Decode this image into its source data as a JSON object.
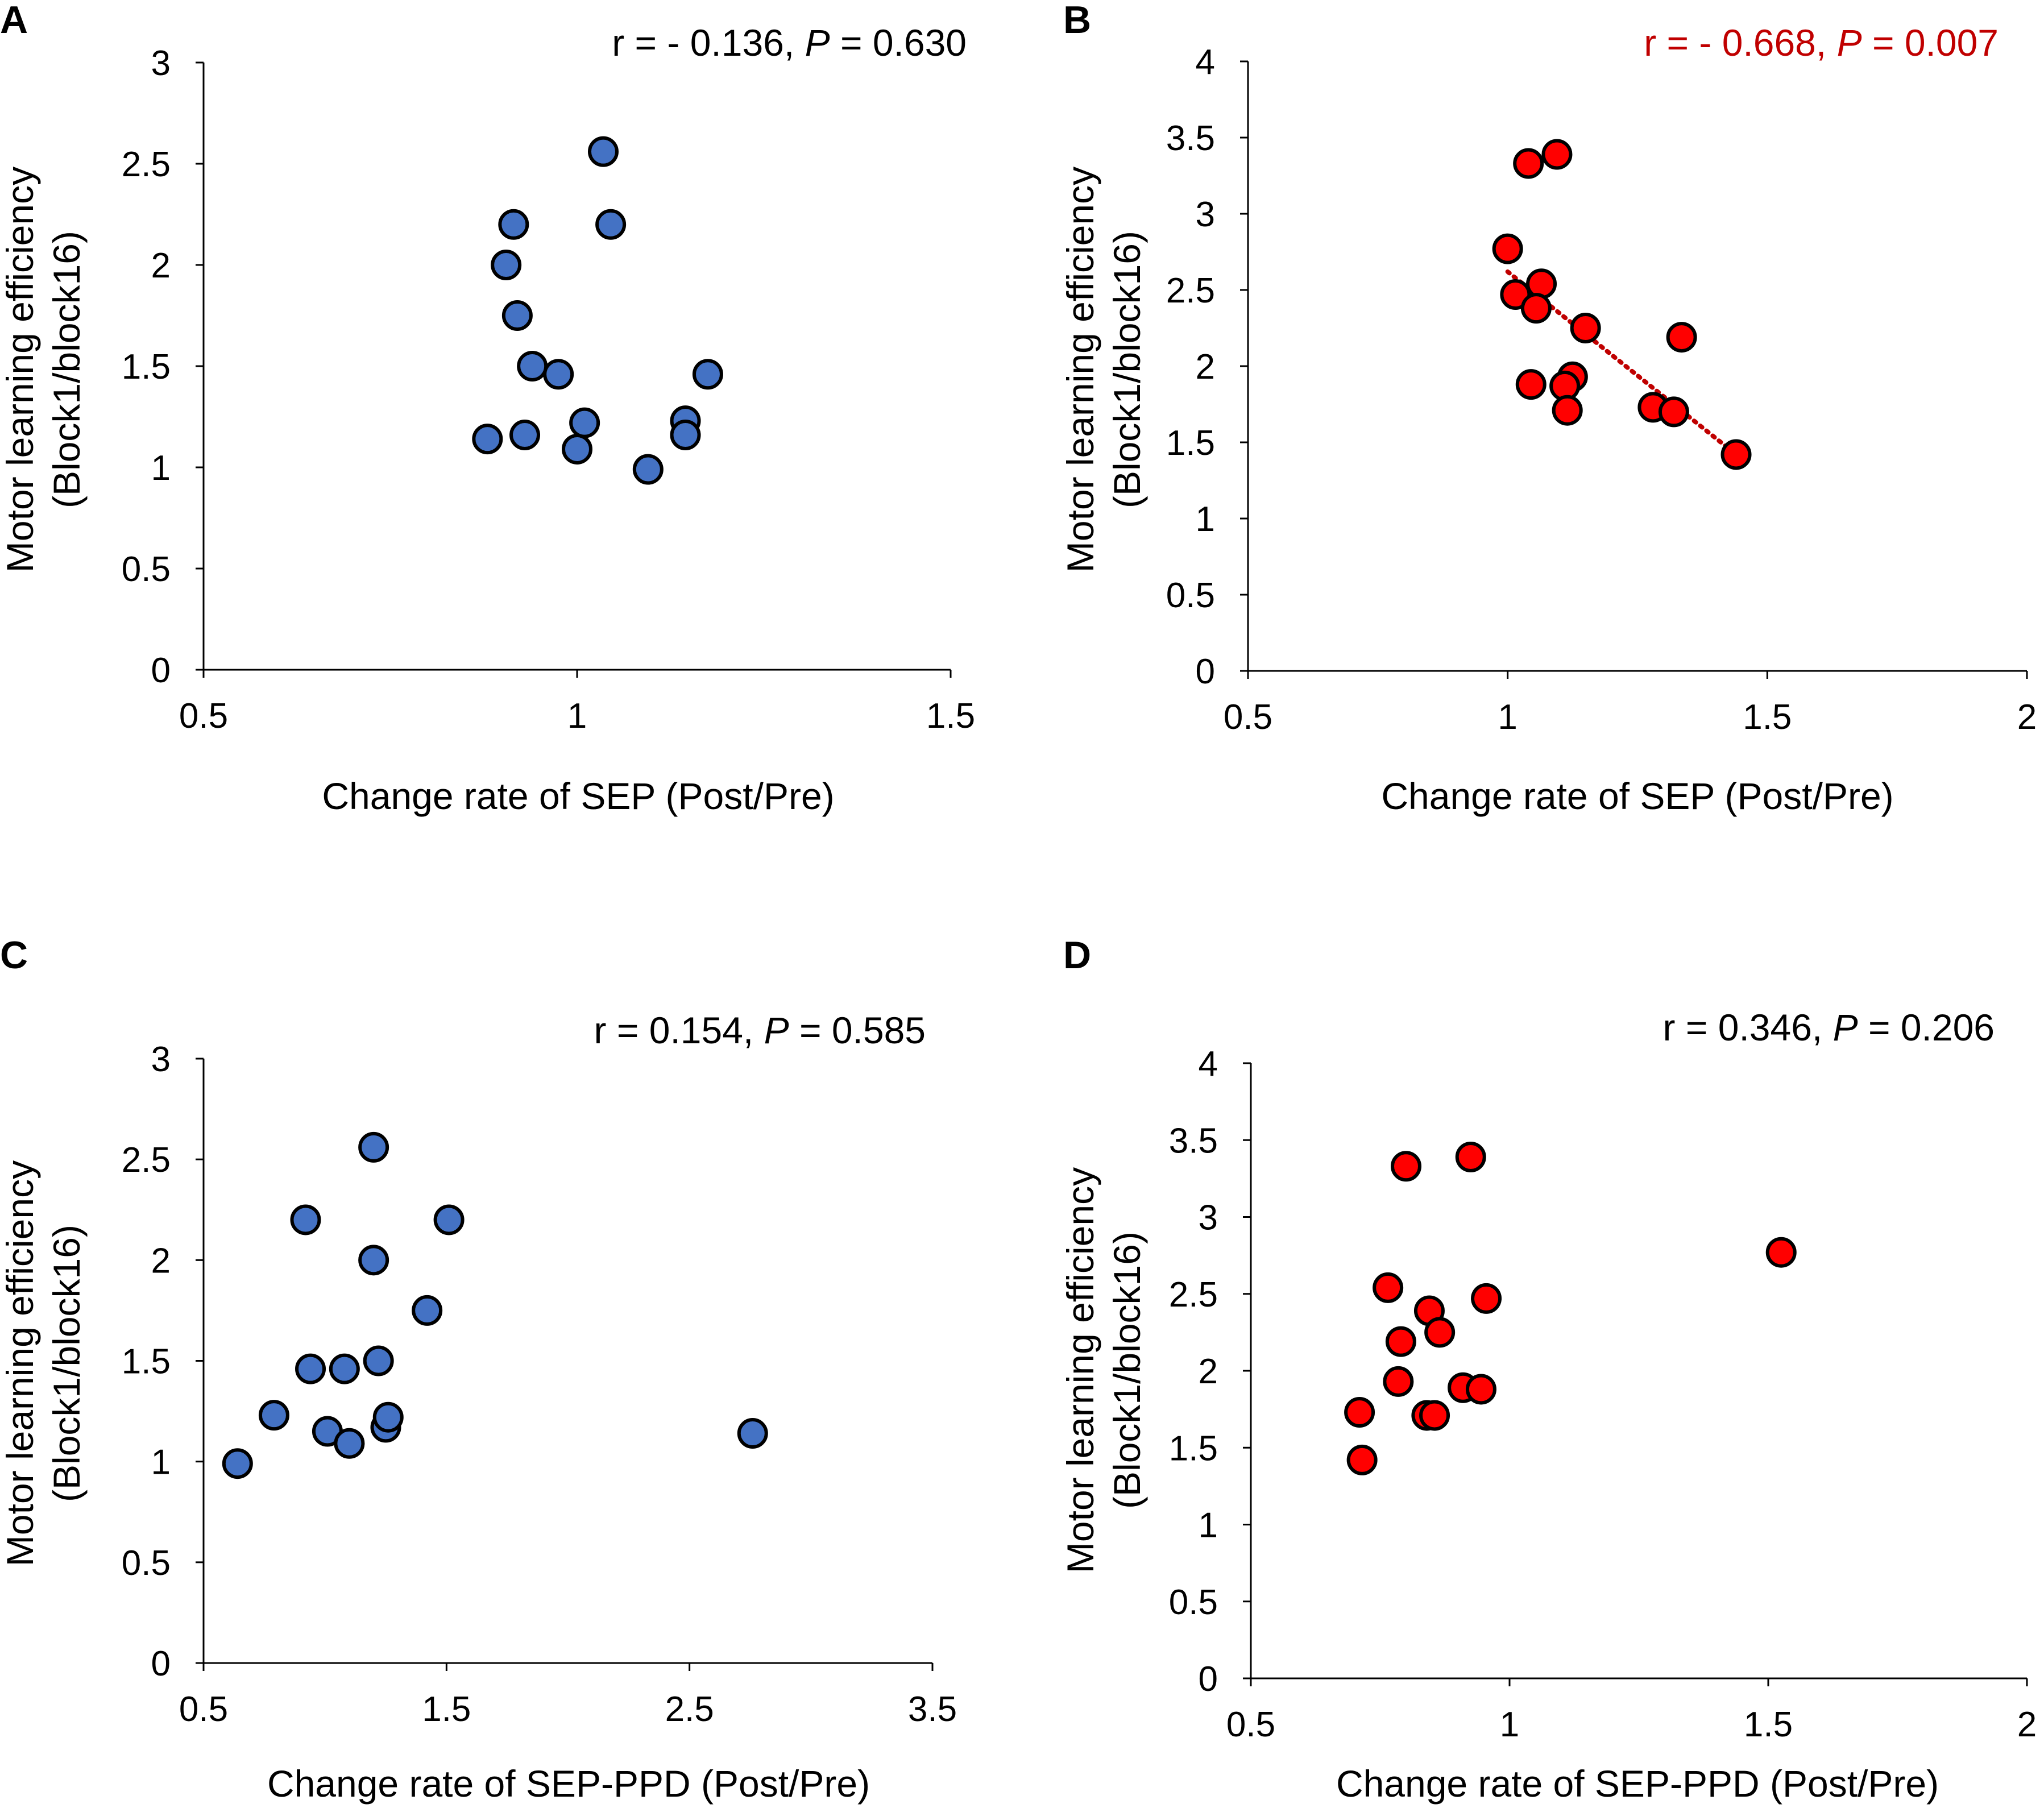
{
  "chart_data": [
    {
      "panel": "A",
      "type": "scatter",
      "xlabel": "Change rate of SEP (Post/Pre)",
      "ylabel_line1": "Motor learning efficiency",
      "ylabel_line2": "(Block1/block16)",
      "xlim": [
        0.5,
        1.5
      ],
      "ylim": [
        0,
        3
      ],
      "xticks": [
        0.5,
        1,
        1.5
      ],
      "xtick_labels": [
        "0.5",
        "1",
        "1.5"
      ],
      "yticks": [
        0,
        0.5,
        1,
        1.5,
        2,
        2.5,
        3
      ],
      "ytick_labels": [
        "0",
        "0.5",
        "1",
        "1.5",
        "2",
        "2.5",
        "3"
      ],
      "stat_prefix": "r = - 0.136, ",
      "stat_p": "P",
      "stat_suffix": " = 0.630",
      "stat_color": "#000000",
      "marker_color": "#4472C4",
      "trendline": null,
      "points": [
        [
          0.88,
          1.14
        ],
        [
          0.915,
          2.2
        ],
        [
          0.905,
          2.0
        ],
        [
          0.92,
          1.75
        ],
        [
          0.93,
          1.16
        ],
        [
          0.94,
          1.5
        ],
        [
          0.975,
          1.46
        ],
        [
          1.0,
          1.09
        ],
        [
          1.01,
          1.22
        ],
        [
          1.035,
          2.56
        ],
        [
          1.045,
          2.2
        ],
        [
          1.095,
          0.99
        ],
        [
          1.145,
          1.23
        ],
        [
          1.145,
          1.16
        ],
        [
          1.175,
          1.46
        ]
      ]
    },
    {
      "panel": "B",
      "type": "scatter",
      "xlabel": "Change rate of SEP (Post/Pre)",
      "ylabel_line1": "Motor learning efficiency",
      "ylabel_line2": "(Block1/block16)",
      "xlim": [
        0.5,
        2
      ],
      "ylim": [
        0,
        4
      ],
      "xticks": [
        0.5,
        1,
        1.5,
        2
      ],
      "xtick_labels": [
        "0.5",
        "1",
        "1.5",
        "2"
      ],
      "yticks": [
        0,
        0.5,
        1,
        1.5,
        2,
        2.5,
        3,
        3.5,
        4
      ],
      "ytick_labels": [
        "0",
        "0.5",
        "1",
        "1.5",
        "2",
        "2.5",
        "3",
        "3.5",
        "4"
      ],
      "stat_prefix": "r = - 0.668, ",
      "stat_p": "P",
      "stat_suffix": " = 0.007",
      "stat_color": "#C00000",
      "marker_color": "#FF0000",
      "trendline": {
        "x": [
          1.0,
          1.44
        ],
        "y": [
          2.62,
          1.42
        ],
        "color": "#C00000"
      },
      "points": [
        [
          1.04,
          3.33
        ],
        [
          1.095,
          3.39
        ],
        [
          1.0,
          2.77
        ],
        [
          1.065,
          2.54
        ],
        [
          1.015,
          2.47
        ],
        [
          1.055,
          2.38
        ],
        [
          1.15,
          2.25
        ],
        [
          1.335,
          2.19
        ],
        [
          1.045,
          1.88
        ],
        [
          1.125,
          1.93
        ],
        [
          1.11,
          1.87
        ],
        [
          1.115,
          1.71
        ],
        [
          1.28,
          1.73
        ],
        [
          1.32,
          1.7
        ],
        [
          1.44,
          1.42
        ]
      ]
    },
    {
      "panel": "C",
      "type": "scatter",
      "xlabel": "Change rate of SEP-PPD (Post/Pre)",
      "ylabel_line1": "Motor learning efficiency",
      "ylabel_line2": "(Block1/block16)",
      "xlim": [
        0.5,
        3.5
      ],
      "ylim": [
        0,
        3
      ],
      "xticks": [
        0.5,
        1.5,
        2.5,
        3.5
      ],
      "xtick_labels": [
        "0.5",
        "1.5",
        "2.5",
        "3.5"
      ],
      "yticks": [
        0,
        0.5,
        1,
        1.5,
        2,
        2.5,
        3
      ],
      "ytick_labels": [
        "0",
        "0.5",
        "1",
        "1.5",
        "2",
        "2.5",
        "3"
      ],
      "stat_prefix": "r = 0.154, ",
      "stat_p": "P",
      "stat_suffix": " = 0.585",
      "stat_color": "#000000",
      "marker_color": "#4472C4",
      "trendline": null,
      "points": [
        [
          0.64,
          0.99
        ],
        [
          0.79,
          1.23
        ],
        [
          0.92,
          2.2
        ],
        [
          0.94,
          1.46
        ],
        [
          1.01,
          1.15
        ],
        [
          1.08,
          1.46
        ],
        [
          1.1,
          1.09
        ],
        [
          1.2,
          2.56
        ],
        [
          1.2,
          2.0
        ],
        [
          1.22,
          1.5
        ],
        [
          1.25,
          1.17
        ],
        [
          1.26,
          1.22
        ],
        [
          1.42,
          1.75
        ],
        [
          1.51,
          2.2
        ],
        [
          2.76,
          1.14
        ]
      ]
    },
    {
      "panel": "D",
      "type": "scatter",
      "xlabel": "Change rate of SEP-PPD (Post/Pre)",
      "ylabel_line1": "Motor learning efficiency",
      "ylabel_line2": "(Block1/block16)",
      "xlim": [
        0.5,
        2
      ],
      "ylim": [
        0,
        4
      ],
      "xticks": [
        0.5,
        1,
        1.5,
        2
      ],
      "xtick_labels": [
        "0.5",
        "1",
        "1.5",
        "2"
      ],
      "yticks": [
        0,
        0.5,
        1,
        1.5,
        2,
        2.5,
        3,
        3.5,
        4
      ],
      "ytick_labels": [
        "0",
        "0.5",
        "1",
        "1.5",
        "2",
        "2.5",
        "3",
        "3.5",
        "4"
      ],
      "stat_prefix": "r = 0.346, ",
      "stat_p": "P",
      "stat_suffix": " = 0.206",
      "stat_color": "#000000",
      "marker_color": "#FF0000",
      "trendline": null,
      "points": [
        [
          0.71,
          1.73
        ],
        [
          0.715,
          1.42
        ],
        [
          0.765,
          2.54
        ],
        [
          0.785,
          1.93
        ],
        [
          0.79,
          2.19
        ],
        [
          0.8,
          3.33
        ],
        [
          0.84,
          1.71
        ],
        [
          0.845,
          2.39
        ],
        [
          0.855,
          1.71
        ],
        [
          0.865,
          2.25
        ],
        [
          0.91,
          1.89
        ],
        [
          0.925,
          3.39
        ],
        [
          0.945,
          1.88
        ],
        [
          0.955,
          2.47
        ],
        [
          1.525,
          2.77
        ]
      ]
    }
  ]
}
